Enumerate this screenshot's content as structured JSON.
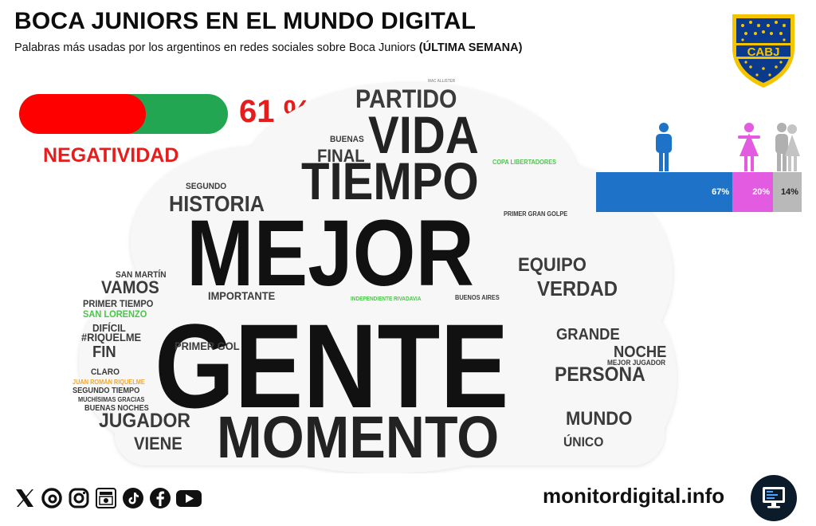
{
  "header": {
    "title": "BOCA JUNIORS EN EL MUNDO DIGITAL",
    "subtitle": "Palabras más usadas por los argentinos en redes sociales sobre Boca Juniors",
    "subtitle_bold": "(ÚLTIMA SEMANA)"
  },
  "logo": {
    "text": "CABJ",
    "colors": {
      "blue": "#0b3a8c",
      "gold": "#f5c400"
    }
  },
  "negativity": {
    "value": 61,
    "value_text": "61 %",
    "label": "NEGATIVIDAD",
    "colors": {
      "negative": "#ff0000",
      "positive": "#22a652",
      "text": "#e41d1d"
    }
  },
  "gender": {
    "segments": [
      {
        "label": "67%",
        "value": 67,
        "color": "#1e73c8",
        "icon": "male-icon"
      },
      {
        "label": "20%",
        "value": 20,
        "color": "#e35be0",
        "icon": "female-icon"
      },
      {
        "label": "14%",
        "value": 14,
        "color": "#b9b9b9",
        "icon": "group-icon"
      }
    ]
  },
  "wordcloud": {
    "words": [
      {
        "text": "GENTE",
        "color": "#111111"
      },
      {
        "text": "MEJOR",
        "color": "#111111"
      },
      {
        "text": "MOMENTO",
        "color": "#222222"
      },
      {
        "text": "TIEMPO",
        "color": "#222222"
      },
      {
        "text": "VIDA",
        "color": "#222222"
      },
      {
        "text": "PARTIDO",
        "color": "#3b3b3b"
      },
      {
        "text": "HISTORIA",
        "color": "#3b3b3b"
      },
      {
        "text": "EQUIPO",
        "color": "#3b3b3b"
      },
      {
        "text": "VERDAD",
        "color": "#3b3b3b"
      },
      {
        "text": "PERSONA",
        "color": "#3b3b3b"
      },
      {
        "text": "JUGADOR",
        "color": "#3b3b3b"
      },
      {
        "text": "MUNDO",
        "color": "#3b3b3b"
      },
      {
        "text": "GRANDE",
        "color": "#3b3b3b"
      },
      {
        "text": "NOCHE",
        "color": "#3b3b3b"
      },
      {
        "text": "VAMOS",
        "color": "#3b3b3b"
      },
      {
        "text": "VIENE",
        "color": "#3b3b3b"
      },
      {
        "text": "FINAL",
        "color": "#3b3b3b"
      },
      {
        "text": "FIN",
        "color": "#3b3b3b"
      },
      {
        "text": "ÚNICO",
        "color": "#3b3b3b"
      },
      {
        "text": "PRIMER GOL",
        "color": "#3b3b3b"
      },
      {
        "text": "IMPORTANTE",
        "color": "#3b3b3b"
      },
      {
        "text": "#RIQUELME",
        "color": "#3b3b3b"
      },
      {
        "text": "DIFÍCIL",
        "color": "#3b3b3b"
      },
      {
        "text": "PRIMER TIEMPO",
        "color": "#3b3b3b"
      },
      {
        "text": "SAN LORENZO",
        "color": "#4cc44c"
      },
      {
        "text": "SAN MARTÍN",
        "color": "#3b3b3b"
      },
      {
        "text": "SEGUNDO",
        "color": "#3b3b3b"
      },
      {
        "text": "BUENAS",
        "color": "#3b3b3b"
      },
      {
        "text": "CLARO",
        "color": "#3b3b3b"
      },
      {
        "text": "JUAN ROMÁN RIQUELME",
        "color": "#f4a62a"
      },
      {
        "text": "SEGUNDO TIEMPO",
        "color": "#3b3b3b"
      },
      {
        "text": "MUCHÍSIMAS GRACIAS",
        "color": "#3b3b3b"
      },
      {
        "text": "BUENAS NOCHES",
        "color": "#3b3b3b"
      },
      {
        "text": "MEJOR JUGADOR",
        "color": "#3b3b3b"
      },
      {
        "text": "BUENOS AIRES",
        "color": "#3b3b3b"
      },
      {
        "text": "PRIMER GRAN GOLPE",
        "color": "#3b3b3b"
      },
      {
        "text": "COPA LIBERTADORES",
        "color": "#4cc44c"
      },
      {
        "text": "INDEPENDIENTE RIVADAVIA",
        "color": "#4cc44c"
      },
      {
        "text": "MAC ALLISTER",
        "color": "#9a9a9a"
      }
    ]
  },
  "footer": {
    "social_icons": [
      "x-icon",
      "threads-icon",
      "instagram-icon",
      "news-icon",
      "tiktok-icon",
      "facebook-icon",
      "youtube-icon"
    ],
    "website": "monitordigital.info",
    "site_icon": "monitor-icon"
  }
}
